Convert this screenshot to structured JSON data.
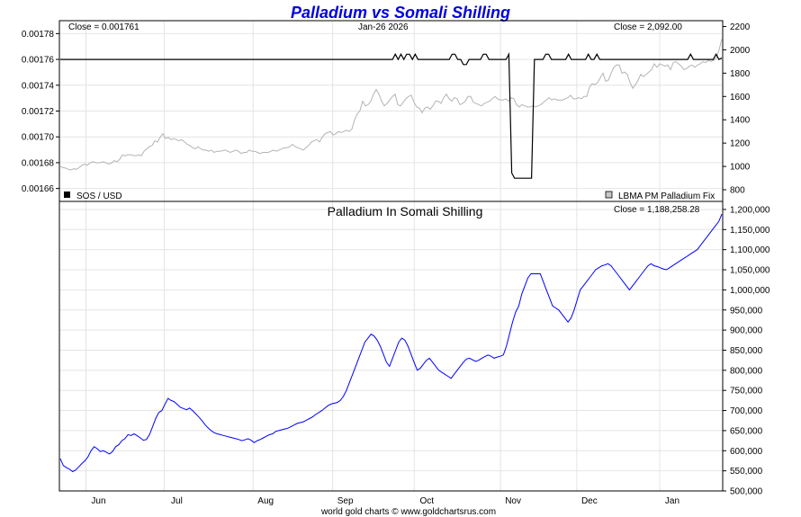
{
  "chart_data": [
    {
      "type": "line",
      "title": "Palladium vs Somali Shilling",
      "date_label": "Jan-26  2026",
      "left_close_label": "Close = 0.001761",
      "right_close_label": "Close = 2,092.00",
      "legend_left": "SOS / USD",
      "legend_right": "LBMA PM Palladium Fix",
      "y_left_ticks": [
        "0.00178",
        "0.00176",
        "0.00174",
        "0.00172",
        "0.00170",
        "0.00168",
        "0.00166"
      ],
      "y_left_range": [
        0.00165,
        0.00179
      ],
      "y_right_ticks": [
        "2200",
        "2000",
        "1800",
        "1600",
        "1400",
        "1200",
        "1000",
        "800"
      ],
      "y_right_range": [
        700,
        2250
      ],
      "colors": {
        "sos": "#000000",
        "palladium": "#b4b4b4"
      },
      "series": [
        {
          "name": "SOS / USD",
          "axis": "left",
          "values": [
            0.00176,
            0.00176,
            0.00176,
            0.00176,
            0.00176,
            0.00176,
            0.00176,
            0.00176,
            0.00176,
            0.00176,
            0.00176,
            0.00176,
            0.00176,
            0.00176,
            0.00176,
            0.00176,
            0.00176,
            0.00176,
            0.00176,
            0.00176,
            0.00176,
            0.00176,
            0.00176,
            0.00176,
            0.00176,
            0.00176,
            0.00176,
            0.00176,
            0.00176,
            0.00176,
            0.00176,
            0.00176,
            0.00176,
            0.00176,
            0.00176,
            0.00176,
            0.00176,
            0.00176,
            0.00176,
            0.00176,
            0.00176,
            0.00176,
            0.00176,
            0.00176,
            0.00176,
            0.00176,
            0.00176,
            0.00176,
            0.00176,
            0.00176,
            0.00176,
            0.00176,
            0.00176,
            0.00176,
            0.00176,
            0.00176,
            0.00176,
            0.00176,
            0.00176,
            0.00176,
            0.00176,
            0.00176,
            0.00176,
            0.00176,
            0.00176,
            0.00176,
            0.00176,
            0.00176,
            0.00176,
            0.00176,
            0.00176,
            0.00176,
            0.00176,
            0.00176,
            0.00176,
            0.00176,
            0.00176,
            0.00176,
            0.00176,
            0.00176,
            0.00176,
            0.00176,
            0.00176,
            0.00176,
            0.00176,
            0.00176,
            0.00176,
            0.00176,
            0.00176,
            0.00176,
            0.00176,
            0.00176,
            0.00176,
            0.00176,
            0.00176,
            0.00176,
            0.00176,
            0.00176,
            0.00176,
            0.00176,
            0.00176,
            0.00176,
            0.00176,
            0.00176,
            0.00176,
            0.00176,
            0.00176,
            0.00176,
            0.00176,
            0.00176,
            0.00176,
            0.00176,
            0.00176,
            0.00176,
            0.00176,
            0.00176,
            0.00176,
            0.00176,
            0.001764,
            0.00176,
            0.001764,
            0.00176,
            0.001764,
            0.001764,
            0.00176,
            0.001764,
            0.00176,
            0.00176,
            0.00176,
            0.00176,
            0.00176,
            0.00176,
            0.00176,
            0.00176,
            0.00176,
            0.00176,
            0.00176,
            0.00176,
            0.001764,
            0.001764,
            0.00176,
            0.00176,
            0.001756,
            0.001756,
            0.00176,
            0.00176,
            0.00176,
            0.00176,
            0.00176,
            0.001764,
            0.001764,
            0.00176,
            0.00176,
            0.00176,
            0.00176,
            0.00176,
            0.00176,
            0.00176,
            0.001764,
            0.001672,
            0.001668,
            0.001668,
            0.001668,
            0.001668,
            0.001668,
            0.001668,
            0.001668,
            0.00176,
            0.00176,
            0.00176,
            0.00176,
            0.001764,
            0.001764,
            0.00176,
            0.00176,
            0.00176,
            0.00176,
            0.00176,
            0.00176,
            0.001764,
            0.00176,
            0.00176,
            0.00176,
            0.00176,
            0.00176,
            0.00176,
            0.001764,
            0.00176,
            0.00176,
            0.001764,
            0.00176,
            0.00176,
            0.00176,
            0.00176,
            0.00176,
            0.00176,
            0.00176,
            0.00176,
            0.00176,
            0.00176,
            0.00176,
            0.00176,
            0.00176,
            0.00176,
            0.00176,
            0.00176,
            0.00176,
            0.00176,
            0.00176,
            0.00176,
            0.00176,
            0.00176,
            0.00176,
            0.00176,
            0.00176,
            0.00176,
            0.00176,
            0.00176,
            0.00176,
            0.00176,
            0.00176,
            0.00176,
            0.001764,
            0.00176,
            0.00176,
            0.00176,
            0.00176,
            0.00176,
            0.00176,
            0.00176,
            0.00176,
            0.001764,
            0.00176,
            0.001761
          ]
        },
        {
          "name": "LBMA PM Palladium Fix",
          "axis": "right",
          "values": [
            1000,
            990,
            985,
            975,
            970,
            980,
            975,
            990,
            1010,
            1020,
            1010,
            1030,
            1040,
            1035,
            1030,
            1035,
            1040,
            1030,
            1020,
            1030,
            1050,
            1040,
            1060,
            1100,
            1090,
            1100,
            1100,
            1095,
            1090,
            1100,
            1090,
            1130,
            1150,
            1170,
            1180,
            1220,
            1210,
            1250,
            1280,
            1240,
            1250,
            1230,
            1240,
            1230,
            1220,
            1230,
            1210,
            1190,
            1180,
            1160,
            1150,
            1170,
            1150,
            1140,
            1140,
            1130,
            1140,
            1120,
            1130,
            1130,
            1135,
            1140,
            1130,
            1120,
            1130,
            1140,
            1130,
            1110,
            1120,
            1120,
            1140,
            1130,
            1130,
            1120,
            1110,
            1120,
            1120,
            1120,
            1130,
            1140,
            1130,
            1140,
            1150,
            1160,
            1160,
            1170,
            1190,
            1170,
            1160,
            1150,
            1140,
            1160,
            1180,
            1210,
            1220,
            1230,
            1210,
            1250,
            1280,
            1290,
            1300,
            1270,
            1280,
            1300,
            1290,
            1300,
            1310,
            1300,
            1320,
            1400,
            1450,
            1480,
            1560,
            1520,
            1530,
            1560,
            1620,
            1660,
            1620,
            1560,
            1520,
            1540,
            1570,
            1600,
            1620,
            1530,
            1520,
            1550,
            1580,
            1600,
            1610,
            1550,
            1510,
            1500,
            1460,
            1500,
            1510,
            1490,
            1520,
            1560,
            1560,
            1540,
            1590,
            1620,
            1580,
            1560,
            1590,
            1580,
            1530,
            1540,
            1560,
            1600,
            1600,
            1550,
            1540,
            1530,
            1520,
            1540,
            1550,
            1560,
            1580,
            1600,
            1580,
            1570,
            1570,
            1580,
            1560,
            1590,
            1580,
            1530,
            1510,
            1530,
            1520,
            1510,
            1510,
            1520,
            1510,
            1520,
            1530,
            1550,
            1570,
            1590,
            1570,
            1580,
            1570,
            1570,
            1570,
            1580,
            1590,
            1610,
            1580,
            1580,
            1590,
            1580,
            1600,
            1600,
            1680,
            1710,
            1700,
            1720,
            1760,
            1800,
            1730,
            1740,
            1800,
            1850,
            1870,
            1870,
            1800,
            1810,
            1790,
            1720,
            1670,
            1700,
            1740,
            1790,
            1770,
            1790,
            1810,
            1830,
            1880,
            1850,
            1880,
            1870,
            1860,
            1870,
            1830,
            1890,
            1900,
            1880,
            1860,
            1830,
            1840,
            1860,
            1870,
            1850,
            1870,
            1880,
            1900,
            1890,
            1910,
            1900,
            1910,
            1930,
            2000,
            2092
          ]
        }
      ]
    },
    {
      "type": "line",
      "title": "Palladium In Somali Shilling",
      "close_label": "Close = 1,188,258.28",
      "x_labels": [
        "Jun",
        "Jul",
        "Aug",
        "Sep",
        "Oct",
        "Nov",
        "Dec",
        "Jan"
      ],
      "x_label_positions": [
        0.04,
        0.158,
        0.292,
        0.412,
        0.535,
        0.665,
        0.78,
        0.905
      ],
      "y_ticks": [
        "1,200,000",
        "1,150,000",
        "1,100,000",
        "1,050,000",
        "1,000,000",
        "950,000",
        "900,000",
        "850,000",
        "800,000",
        "750,000",
        "700,000",
        "650,000",
        "600,000",
        "550,000",
        "500,000"
      ],
      "ylim": [
        500000,
        1220000
      ],
      "colors": {
        "line": "#0000ff"
      },
      "series": [
        {
          "name": "Palladium In Somali Shilling",
          "values": [
            580000,
            563000,
            558000,
            554000,
            548000,
            552000,
            560000,
            568000,
            575000,
            585000,
            600000,
            610000,
            605000,
            598000,
            600000,
            596000,
            592000,
            598000,
            610000,
            615000,
            625000,
            630000,
            640000,
            638000,
            642000,
            637000,
            632000,
            626000,
            628000,
            640000,
            660000,
            680000,
            695000,
            700000,
            715000,
            730000,
            725000,
            722000,
            715000,
            708000,
            705000,
            702000,
            706000,
            700000,
            692000,
            684000,
            675000,
            665000,
            657000,
            650000,
            645000,
            642000,
            640000,
            638000,
            636000,
            634000,
            632000,
            630000,
            628000,
            625000,
            627000,
            630000,
            626000,
            620000,
            625000,
            628000,
            632000,
            636000,
            640000,
            642000,
            648000,
            650000,
            652000,
            654000,
            656000,
            660000,
            664000,
            668000,
            670000,
            672000,
            676000,
            680000,
            684000,
            690000,
            695000,
            700000,
            706000,
            712000,
            716000,
            718000,
            720000,
            725000,
            735000,
            750000,
            770000,
            790000,
            810000,
            830000,
            850000,
            870000,
            880000,
            890000,
            885000,
            875000,
            860000,
            840000,
            820000,
            810000,
            830000,
            850000,
            870000,
            880000,
            875000,
            860000,
            840000,
            820000,
            800000,
            805000,
            815000,
            825000,
            830000,
            820000,
            810000,
            800000,
            795000,
            790000,
            785000,
            780000,
            790000,
            800000,
            810000,
            820000,
            828000,
            830000,
            826000,
            822000,
            825000,
            830000,
            834000,
            838000,
            835000,
            830000,
            833000,
            835000,
            838000,
            860000,
            890000,
            920000,
            945000,
            960000,
            990000,
            1010000,
            1030000,
            1040000,
            1040000,
            1040000,
            1040000,
            1020000,
            1000000,
            980000,
            960000,
            955000,
            950000,
            940000,
            930000,
            920000,
            930000,
            950000,
            975000,
            1000000,
            1010000,
            1020000,
            1030000,
            1040000,
            1050000,
            1055000,
            1060000,
            1062000,
            1065000,
            1060000,
            1050000,
            1040000,
            1030000,
            1020000,
            1010000,
            1000000,
            1010000,
            1020000,
            1030000,
            1040000,
            1050000,
            1060000,
            1065000,
            1060000,
            1058000,
            1055000,
            1052000,
            1050000,
            1055000,
            1060000,
            1065000,
            1070000,
            1075000,
            1080000,
            1085000,
            1090000,
            1095000,
            1100000,
            1110000,
            1120000,
            1130000,
            1140000,
            1150000,
            1160000,
            1170000,
            1188258
          ]
        }
      ]
    }
  ],
  "footer": "world gold charts © www.goldchartsrus.com"
}
